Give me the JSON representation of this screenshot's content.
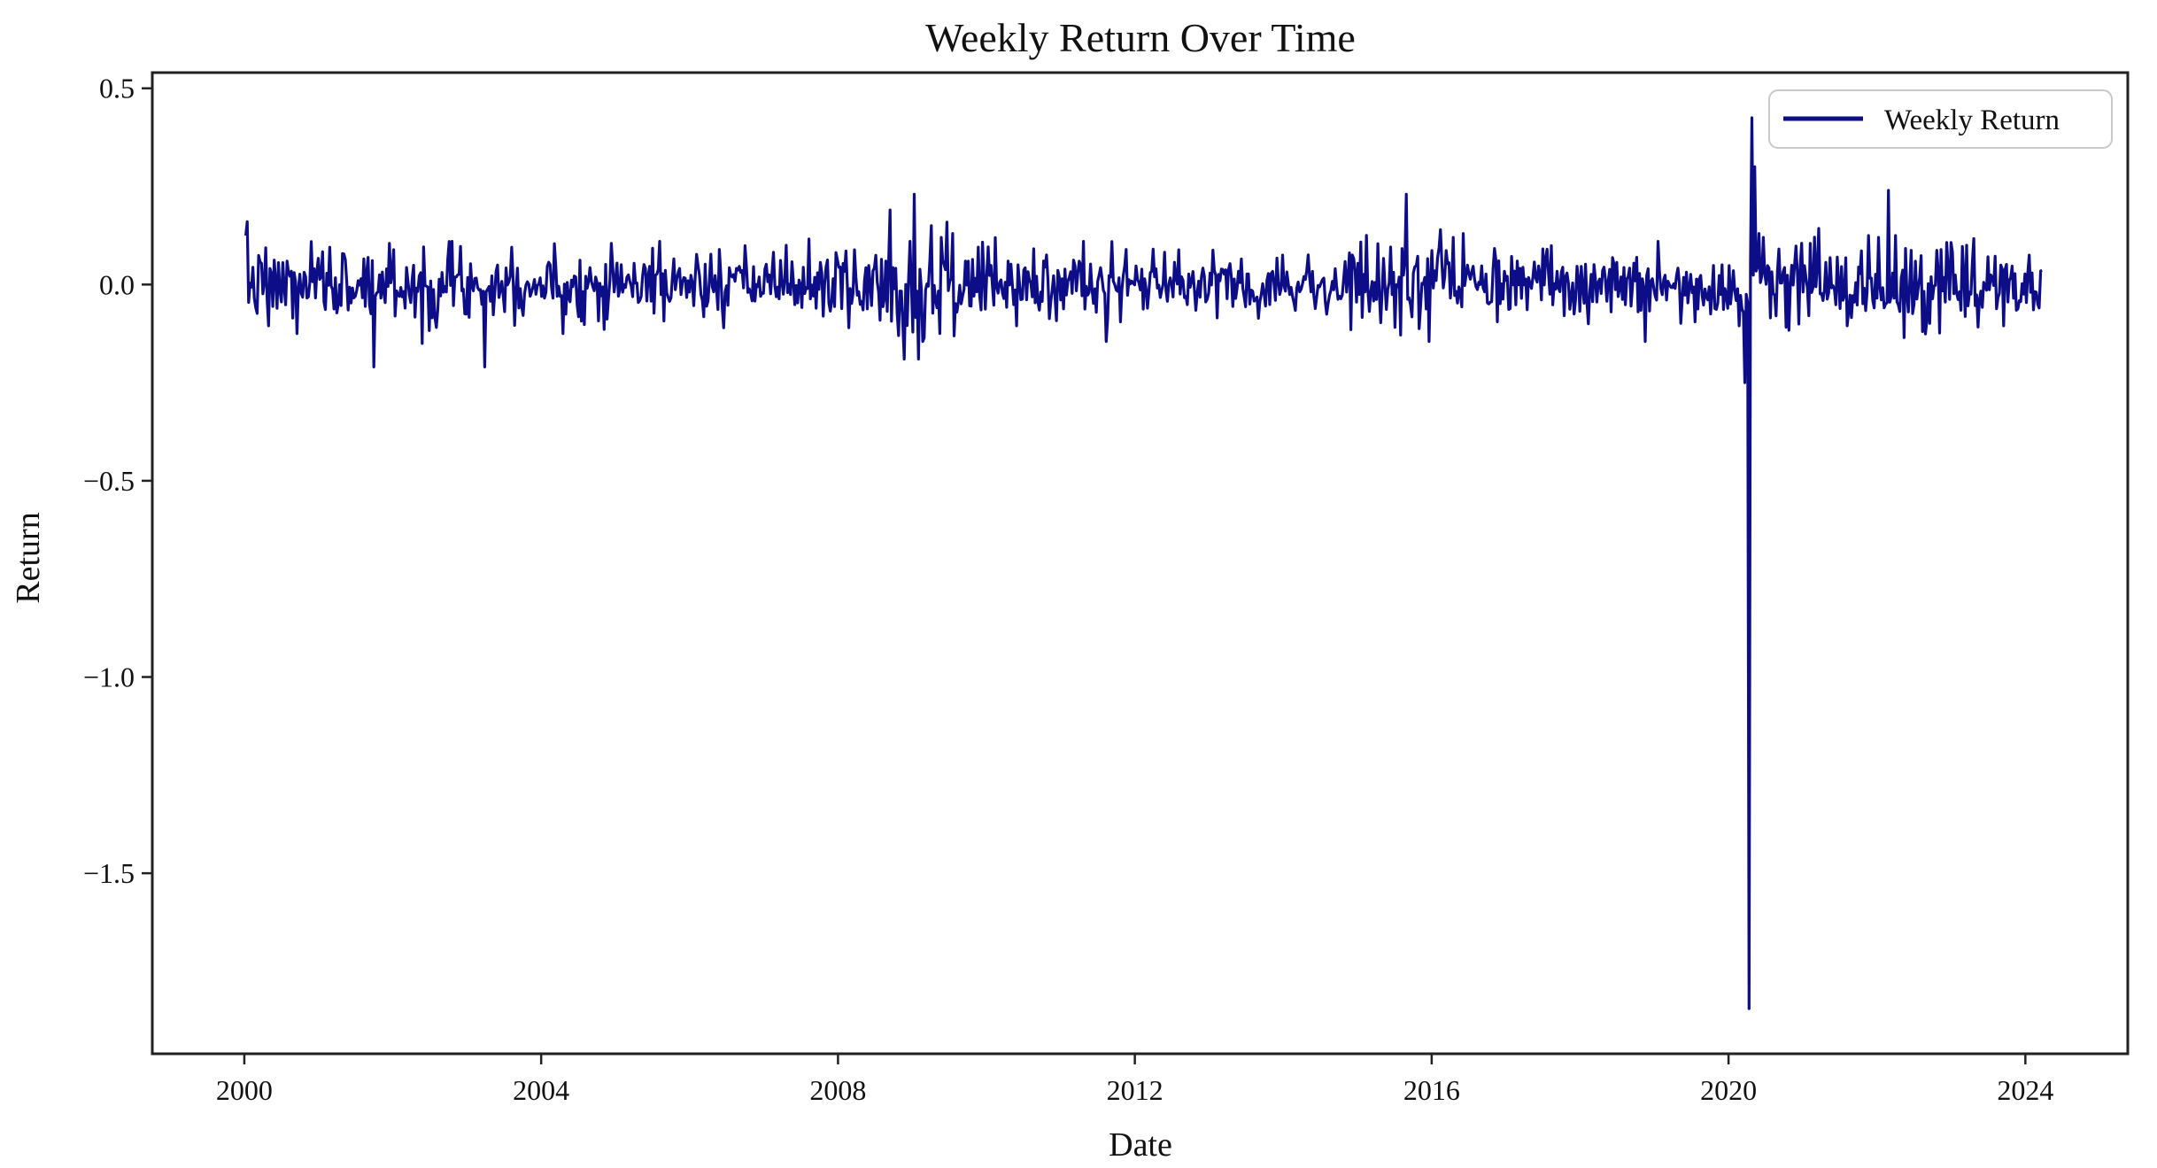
{
  "chart_data": {
    "type": "line",
    "title": "Weekly Return Over Time",
    "xlabel": "Date",
    "ylabel": "Return",
    "series_name": "Weekly Return",
    "legend": {
      "position": "upper right",
      "entries": [
        {
          "label": "Weekly Return",
          "color": "#0d0d87"
        }
      ]
    },
    "line_color": "#0d0d87",
    "frame_color": "#222222",
    "background_color": "#ffffff",
    "grid": false,
    "x_unit": "year (weekly samples)",
    "x_ticks": [
      {
        "value": 2000,
        "label": "2000"
      },
      {
        "value": 2004,
        "label": "2004"
      },
      {
        "value": 2008,
        "label": "2008"
      },
      {
        "value": 2012,
        "label": "2012"
      },
      {
        "value": 2016,
        "label": "2016"
      },
      {
        "value": 2020,
        "label": "2020"
      },
      {
        "value": 2024,
        "label": "2024"
      }
    ],
    "y_ticks": [
      {
        "value": 0.5,
        "label": "0.5"
      },
      {
        "value": 0.0,
        "label": "0.0"
      },
      {
        "value": -0.5,
        "label": "−0.5"
      },
      {
        "value": -1.0,
        "label": "−1.0"
      },
      {
        "value": -1.5,
        "label": "−1.5"
      }
    ],
    "xlim": [
      1998.76,
      2025.38
    ],
    "ylim": [
      -1.96,
      0.54
    ],
    "data_start_year": 2000.02,
    "data_end_year": 2024.24,
    "sampling_step_years": 0.0191643,
    "approx_n_points": 1264,
    "observed_extremes": {
      "min": {
        "x": 2020.27,
        "y": -1.845
      },
      "max": {
        "x": 2020.31,
        "y": 0.425
      }
    },
    "key_points": [
      [
        2000.04,
        0.16
      ],
      [
        2000.33,
        -0.105
      ],
      [
        2000.71,
        -0.125
      ],
      [
        2001.15,
        0.095
      ],
      [
        2001.74,
        -0.21
      ],
      [
        2001.95,
        0.105
      ],
      [
        2002.4,
        -0.15
      ],
      [
        2002.8,
        0.11
      ],
      [
        2003.24,
        -0.21
      ],
      [
        2003.6,
        0.095
      ],
      [
        2004.3,
        -0.125
      ],
      [
        2004.95,
        0.105
      ],
      [
        2005.6,
        0.11
      ],
      [
        2006.45,
        -0.11
      ],
      [
        2007.3,
        0.1
      ],
      [
        2008.15,
        -0.11
      ],
      [
        2008.71,
        0.19
      ],
      [
        2008.82,
        -0.13
      ],
      [
        2008.9,
        -0.19
      ],
      [
        2009.02,
        0.23
      ],
      [
        2009.08,
        -0.19
      ],
      [
        2009.14,
        -0.145
      ],
      [
        2009.25,
        0.15
      ],
      [
        2009.4,
        0.12
      ],
      [
        2009.55,
        0.13
      ],
      [
        2010.4,
        -0.105
      ],
      [
        2011.3,
        0.11
      ],
      [
        2011.62,
        -0.145
      ],
      [
        2012.25,
        0.09
      ],
      [
        2013.1,
        -0.085
      ],
      [
        2014.0,
        0.075
      ],
      [
        2014.92,
        -0.115
      ],
      [
        2015.13,
        0.125
      ],
      [
        2015.66,
        0.23
      ],
      [
        2015.97,
        -0.145
      ],
      [
        2016.12,
        0.14
      ],
      [
        2016.3,
        0.12
      ],
      [
        2016.88,
        -0.095
      ],
      [
        2017.55,
        0.09
      ],
      [
        2018.12,
        -0.1
      ],
      [
        2018.88,
        -0.145
      ],
      [
        2019.05,
        0.11
      ],
      [
        2019.55,
        -0.095
      ],
      [
        2020.14,
        -0.105
      ],
      [
        2020.21,
        -0.25
      ],
      [
        2020.27,
        -1.845
      ],
      [
        2020.31,
        0.425
      ],
      [
        2020.35,
        0.3
      ],
      [
        2020.42,
        0.13
      ],
      [
        2020.56,
        -0.085
      ],
      [
        2021.1,
        0.105
      ],
      [
        2021.6,
        -0.105
      ],
      [
        2022.02,
        0.12
      ],
      [
        2022.16,
        0.24
      ],
      [
        2022.36,
        -0.135
      ],
      [
        2022.62,
        -0.12
      ],
      [
        2023.2,
        0.1
      ],
      [
        2023.7,
        -0.105
      ],
      [
        2024.05,
        0.075
      ]
    ],
    "generator": {
      "seed": 7,
      "clamp_sigma": 2.6,
      "sigma_envelope": [
        [
          1999.9,
          0.048
        ],
        [
          2000.5,
          0.042
        ],
        [
          2001.4,
          0.052
        ],
        [
          2002.9,
          0.04
        ],
        [
          2004.5,
          0.044
        ],
        [
          2006.0,
          0.038
        ],
        [
          2007.5,
          0.045
        ],
        [
          2008.45,
          0.065
        ],
        [
          2009.7,
          0.048
        ],
        [
          2010.8,
          0.042
        ],
        [
          2011.9,
          0.034
        ],
        [
          2013.5,
          0.033
        ],
        [
          2014.5,
          0.05
        ],
        [
          2016.5,
          0.038
        ],
        [
          2018.4,
          0.042
        ],
        [
          2019.3,
          0.038
        ],
        [
          2019.9,
          0.045
        ],
        [
          2020.45,
          0.055
        ],
        [
          2021.3,
          0.048
        ],
        [
          2022.6,
          0.05
        ],
        [
          2023.4,
          0.042
        ]
      ]
    }
  }
}
